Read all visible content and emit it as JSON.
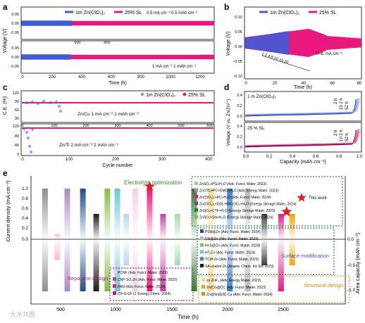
{
  "colors": {
    "blue": "#3f5bd8",
    "pink": "#e8187d",
    "green_box": "#3d8a3d",
    "blue_box": "#3a5bb8",
    "orange_box": "#e0a020",
    "pink_box": "#b0207f",
    "star": "#e41a1c"
  },
  "panel_labels": [
    "a",
    "b",
    "c",
    "d",
    "e"
  ],
  "panel_a": {
    "legend": [
      "1m Zn(ClO₄)₂",
      "25% SL"
    ],
    "top_label": "0.5 mA cm⁻² 0.5 mAh cm⁻²",
    "bottom_label": "1 mA cm⁻² 1 mAh cm⁻²",
    "ylabel": "Voltage (V)",
    "xlabel": "Time (h)",
    "top_yticks": [
      "0.05",
      "0.00",
      "-0.05"
    ],
    "bottom_yticks": [
      "0.05",
      "0.00",
      "-0.05"
    ],
    "top_xticks": [
      "600",
      "800"
    ],
    "bottom_xticks": [
      "0",
      "200",
      "400",
      "600",
      "800",
      "1000",
      "1200"
    ]
  },
  "panel_b": {
    "legend": [
      "1m Zn(ClO₄)₂",
      "25% SL"
    ],
    "ylabel": "Voltage (V)",
    "xlabel": "Time (h)",
    "yticks": [
      "0.10",
      "0.05",
      "0.00",
      "-0.05",
      "-0.10"
    ],
    "xticks": [
      "0",
      "20",
      "40",
      "60",
      "80"
    ],
    "rate_label": "1 2 4 8 10 15 20",
    "unit_label": "Unit: mA cm⁻²"
  },
  "panel_c": {
    "legend": [
      "1m Zn(ClO₄)₂",
      "25% SL"
    ],
    "ylabel": "C.E. (%)",
    "xlabel": "Cycle number",
    "top_label": "Zn/Cu 1 mA cm⁻² 1 mAh cm⁻²",
    "bottom_label": "Zn/Ti 2 mA cm⁻² 2 mAh cm⁻²",
    "top_yticks": [
      "120",
      "90",
      "60",
      "30"
    ],
    "bottom_yticks": [
      "120",
      "80",
      "40",
      "0"
    ],
    "top_xticks": [
      "0",
      "100",
      "200",
      "300",
      "400",
      "500",
      "600"
    ],
    "bottom_xticks": [
      "0",
      "100",
      "200",
      "300",
      "400"
    ]
  },
  "panel_d": {
    "ylabel": "Voltage (V vs. Zn/Zn²⁺)",
    "xlabel": "Capacity (mAh cm⁻²)",
    "top_label": "1 m Zn(ClO₄)₂",
    "bottom_label": "25 % SL",
    "top_yticks": [
      "0.4",
      "0.2",
      "0.0"
    ],
    "bottom_yticks": [
      "0.4",
      "0.2",
      "0.0"
    ],
    "xticks": [
      "0.0",
      "0.2",
      "0.4",
      "0.6",
      "0.8",
      "1.0"
    ],
    "top_rest_labels": [
      "2 h",
      "10 2 h",
      "52 h"
    ],
    "bottom_rest_labels": [
      "2 h",
      "10 2 h",
      "52 h"
    ]
  },
  "panel_e": {
    "ylabel_left": "Current density (mA cm⁻²)",
    "ylabel_right": "Area capacity (mAh cm⁻²)",
    "xlabel": "Time (h)",
    "left_yticks": [
      "1.0",
      "0.8",
      "0.6",
      "0.4",
      "0.2",
      "0.0"
    ],
    "right_yticks": [
      "0.0",
      "-0.5",
      "-1.0"
    ],
    "xticks": [
      "500",
      "1000",
      "1500",
      "2000",
      "2500"
    ],
    "electrolyte_title": "Electrolyte optimization",
    "electrolyte_refs": [
      "ZnSO₄+PG+H₂O (Adv. Funct. Mater. 2023)",
      "ZnOTf₂+PC+DMC+H₂O (Adv. Energy Mater. 2023)",
      "Zn(ClO₄)₂+PC+H₂O (Adv. Funct. Mater. 2024)",
      "Zn(ClO₄)₂+DOL+NH₄ClO₄+H₂O (Energy Storage Mater. 2024)",
      "ZnSO₄+CTF+H₂O (Energy Storage Mater. 2023)",
      "ZnSO₄+SN+H₂O (Energy Storage Mater. 2024)"
    ],
    "this_work": "This work",
    "surface_title": "Surface modification",
    "surface_refs": [
      "PSN@Zn (Adv. Funct. Mater. 2024)",
      "CN@Zn (Adv. Funct. Mater. 2023)",
      "HI-S@Zn (Adv. Funct. Mater. 2024)",
      "HT-Zn (Adv. Funct. Mater. 2024)",
      "TCW-Zn (Adv. Funct. Mater. 2023)",
      "SA-coated Zn (Angew. Chem. Int. Ed. 2023)"
    ],
    "separator_title": "Separator design",
    "separator_refs": [
      "PCNF (Adv. Funct. Mater. 2023)",
      "CNF-SO₃Zn (Adv. Funct. Mater. 2022)",
      "PAN (Adv. Funct. Mater. 2023)",
      "ZIF-8-GF (J. Energy Chem. 2024)"
    ],
    "structural_title": "Structural design",
    "structural_refs": [
      "zn-ZnF₂ (Adv. Energy Mater. 2023)",
      "Zn/CG@CC (Adv. Funct. Mater. 2023)",
      "Zn@Sn@3D Cu (Adv. Funct. Mater. 2024)"
    ],
    "bars": [
      {
        "x": 360,
        "cd": 1.0,
        "cap": 1.0,
        "color": "#8e8e8e"
      },
      {
        "x": 470,
        "cd": 0.1,
        "cap": 0.4,
        "color": "#ffb6d9"
      },
      {
        "x": 560,
        "cd": 1.0,
        "cap": 1.0,
        "color": "#ad86c6"
      },
      {
        "x": 700,
        "cd": 1.0,
        "cap": 1.0,
        "color": "#1f4e8c"
      },
      {
        "x": 820,
        "cd": 0.5,
        "cap": 1.0,
        "color": "#1a1a1a"
      },
      {
        "x": 920,
        "cd": 1.0,
        "cap": 1.0,
        "color": "#7fbf3f"
      },
      {
        "x": 1010,
        "cd": 1.0,
        "cap": 1.0,
        "color": "#6cc6d8"
      },
      {
        "x": 1090,
        "cd": 0.5,
        "cap": 0.5,
        "color": "#b6d6f2"
      },
      {
        "x": 1170,
        "cd": 1.0,
        "cap": 1.0,
        "color": "#f2d4e6"
      },
      {
        "x": 1300,
        "cd": 1.0,
        "cap": 1.0,
        "color": "#e8187d"
      },
      {
        "x": 1420,
        "cd": 0.5,
        "cap": 1.0,
        "color": "#c63fa0"
      },
      {
        "x": 1550,
        "cd": 0.5,
        "cap": 0.5,
        "color": "#a8d8b0"
      },
      {
        "x": 1700,
        "cd": 1.0,
        "cap": 1.0,
        "color": "#2e7d32"
      },
      {
        "x": 1850,
        "cd": 1.0,
        "cap": 1.0,
        "color": "#f5d88a"
      },
      {
        "x": 2020,
        "cd": 1.0,
        "cap": 1.0,
        "color": "#3a7fc4"
      },
      {
        "x": 2180,
        "cd": 1.0,
        "cap": 1.0,
        "color": "#b9b9b9"
      },
      {
        "x": 2330,
        "cd": 0.5,
        "cap": 0.5,
        "color": "#3b3b3b"
      },
      {
        "x": 2480,
        "cd": 0.5,
        "cap": 1.0,
        "color": "#e8187d"
      },
      {
        "x": 2580,
        "cd": 0.5,
        "cap": 0.5,
        "color": "#f0a500"
      }
    ],
    "stars": [
      {
        "x": 1300,
        "cd": 1.0
      },
      {
        "x": 2530,
        "cd": 0.5
      }
    ]
  },
  "watermark": "大木共图"
}
